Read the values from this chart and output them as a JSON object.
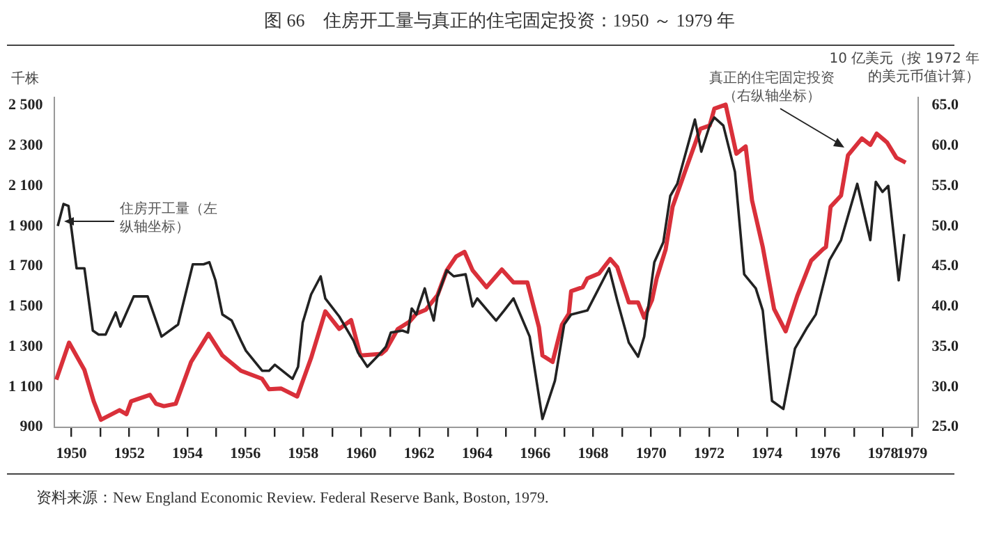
{
  "chart_data": {
    "type": "line",
    "title": "图 66　住房开工量与真正的住宅固定投资：1950 ～ 1979 年",
    "ylabel": "千株",
    "y2label": "10 亿美元（按 1972 年的美元币值计算）",
    "annotations": [
      "住房开工量（左纵轴坐标）",
      "真正的住宅固定投资（右纵轴坐标）",
      "资料来源：New England Economic Review. Federal Reserve Bank, Boston, 1979."
    ],
    "xlim": [
      1949.4,
      1979.2
    ],
    "xticks": [
      1950,
      {
        "value": 1951,
        "label": null
      },
      1952,
      {
        "value": 1953,
        "label": null
      },
      1954,
      {
        "value": 1955,
        "label": null
      },
      1956,
      {
        "value": 1957,
        "label": null
      },
      1958,
      {
        "value": 1959,
        "label": null
      },
      1960,
      {
        "value": 1961,
        "label": null
      },
      1962,
      {
        "value": 1963,
        "label": null
      },
      1964,
      {
        "value": 1965,
        "label": null
      },
      1966,
      {
        "value": 1967,
        "label": null
      },
      1968,
      {
        "value": 1969,
        "label": null
      },
      1970,
      {
        "value": 1971,
        "label": null
      },
      1972,
      {
        "value": 1973,
        "label": null
      },
      1974,
      {
        "value": 1975,
        "label": null
      },
      1976,
      {
        "value": 1977,
        "label": null
      },
      1978,
      1979
    ],
    "ylim": [
      900,
      2540
    ],
    "yticks": [
      900,
      {
        "value": 1100,
        "label": "1 100"
      },
      {
        "value": 1300,
        "label": "1 300"
      },
      {
        "value": 1500,
        "label": "1 500"
      },
      {
        "value": 1700,
        "label": "1 700"
      },
      {
        "value": 1900,
        "label": "1 900"
      },
      {
        "value": 2100,
        "label": "2 100"
      },
      {
        "value": 2300,
        "label": "2 300"
      },
      {
        "value": 2500,
        "label": "2 500"
      }
    ],
    "y2lim": [
      25,
      66
    ],
    "y2ticks": [
      {
        "value": 25,
        "label": "25.0"
      },
      {
        "value": 30,
        "label": "30.0"
      },
      {
        "value": 35,
        "label": "35.0"
      },
      {
        "value": 40,
        "label": "40.0"
      },
      {
        "value": 45,
        "label": "45.0"
      },
      {
        "value": 50,
        "label": "50.0"
      },
      {
        "value": 55,
        "label": "55.0"
      },
      {
        "value": 60,
        "label": "60.0"
      },
      {
        "value": 65,
        "label": "65.0"
      }
    ],
    "grid": false,
    "legend": false,
    "marker": "none",
    "line_style": "solid",
    "series": [
      {
        "color": "#222222",
        "x": [
          1949.53,
          1949.73,
          1949.9,
          1950.18,
          1950.45,
          1950.74,
          1950.94,
          1951.18,
          1951.53,
          1951.69,
          1952.15,
          1952.63,
          1953.11,
          1953.68,
          1954.19,
          1954.56,
          1954.76,
          1954.97,
          1955.21,
          1955.53,
          1955.85,
          1956.02,
          1956.58,
          1956.82,
          1957.02,
          1957.63,
          1957.82,
          1957.98,
          1958.27,
          1958.6,
          1958.76,
          1959.24,
          1959.73,
          1959.89,
          1960.21,
          1960.61,
          1960.85,
          1961.02,
          1961.42,
          1961.61,
          1961.74,
          1961.9,
          1961.98,
          1962.19,
          1962.31,
          1962.5,
          1962.63,
          1962.95,
          1963.19,
          1963.6,
          1963.84,
          1964.0,
          1964.65,
          1964.93,
          1965.25,
          1965.81,
          1966.25,
          1966.68,
          1967.0,
          1967.24,
          1967.8,
          1968.55,
          1968.83,
          1969.23,
          1969.55,
          1969.76,
          1970.11,
          1970.42,
          1970.66,
          1970.9,
          1971.51,
          1971.73,
          1972.02,
          1972.18,
          1972.49,
          1972.89,
          1973.21,
          1973.61,
          1973.85,
          1974.17,
          1974.56,
          1974.96,
          1975.36,
          1975.68,
          1976.15,
          1976.55,
          1977.11,
          1977.56,
          1977.75,
          1977.98,
          1978.18,
          1978.54,
          1978.73
        ],
        "values": [
          1900,
          2010,
          2000,
          1690,
          1690,
          1380,
          1360,
          1360,
          1470,
          1400,
          1550,
          1550,
          1350,
          1410,
          1710,
          1710,
          1720,
          1630,
          1460,
          1430,
          1330,
          1280,
          1180,
          1180,
          1210,
          1140,
          1200,
          1420,
          1560,
          1650,
          1540,
          1450,
          1330,
          1270,
          1200,
          1260,
          1300,
          1370,
          1380,
          1370,
          1490,
          1460,
          1500,
          1590,
          1520,
          1430,
          1550,
          1680,
          1650,
          1660,
          1500,
          1540,
          1430,
          1480,
          1540,
          1350,
          940,
          1130,
          1410,
          1460,
          1480,
          1690,
          1530,
          1320,
          1250,
          1350,
          1720,
          1820,
          2050,
          2110,
          2430,
          2270,
          2400,
          2440,
          2400,
          2170,
          1660,
          1590,
          1480,
          1030,
          990,
          1290,
          1390,
          1460,
          1730,
          1830,
          2110,
          1830,
          2120,
          2070,
          2100,
          1630,
          1860
        ]
      },
      {
        "color": "#d9303a",
        "axis": "y2",
        "x": [
          1949.48,
          1949.92,
          1950.45,
          1950.77,
          1951.02,
          1951.66,
          1951.9,
          1952.06,
          1952.71,
          1952.92,
          1953.19,
          1953.6,
          1954.13,
          1954.73,
          1955.21,
          1955.85,
          1956.58,
          1956.82,
          1957.23,
          1957.79,
          1958.27,
          1958.76,
          1959.24,
          1959.65,
          1959.97,
          1960.69,
          1960.85,
          1961.26,
          1961.66,
          1961.9,
          1962.23,
          1962.63,
          1962.95,
          1963.27,
          1963.56,
          1963.84,
          1964.32,
          1964.85,
          1965.25,
          1965.73,
          1966.13,
          1966.25,
          1966.6,
          1966.92,
          1967.16,
          1967.24,
          1967.64,
          1967.8,
          1968.2,
          1968.59,
          1968.83,
          1969.23,
          1969.55,
          1969.76,
          1970.03,
          1970.19,
          1970.5,
          1970.74,
          1971.22,
          1971.7,
          1972.02,
          1972.18,
          1972.57,
          1972.94,
          1973.26,
          1973.48,
          1973.85,
          1974.24,
          1974.64,
          1975.04,
          1975.52,
          1975.92,
          1976.03,
          1976.19,
          1976.55,
          1976.79,
          1977.27,
          1977.56,
          1977.78,
          1978.14,
          1978.46,
          1978.78
        ],
        "values": [
          30.9,
          35.5,
          32.1,
          28.2,
          25.9,
          27.1,
          26.6,
          28.2,
          29.0,
          27.9,
          27.6,
          27.9,
          33.1,
          36.6,
          33.9,
          32.0,
          31.0,
          29.7,
          29.8,
          28.8,
          33.6,
          39.4,
          37.2,
          38.3,
          33.9,
          34.1,
          34.6,
          37.2,
          38.1,
          39.1,
          39.6,
          41.4,
          44.5,
          46.2,
          46.8,
          44.5,
          42.4,
          44.6,
          43.0,
          43.0,
          37.4,
          33.9,
          33.1,
          37.7,
          39.1,
          41.9,
          42.4,
          43.5,
          44.1,
          45.9,
          44.9,
          40.5,
          40.5,
          38.6,
          40.8,
          43.5,
          47.1,
          52.4,
          57.3,
          62.1,
          62.5,
          64.6,
          65.1,
          59.0,
          59.9,
          53.2,
          47.4,
          39.7,
          36.9,
          41.3,
          45.7,
          47.1,
          47.4,
          52.4,
          53.8,
          58.8,
          60.9,
          60.1,
          61.5,
          60.4,
          58.5,
          57.9
        ]
      }
    ]
  }
}
